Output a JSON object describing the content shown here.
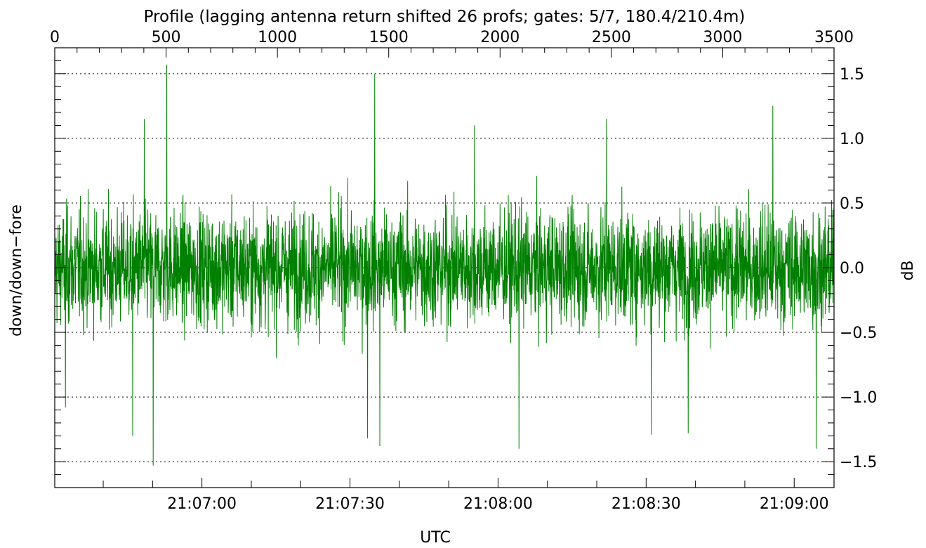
{
  "chart_data": {
    "type": "line",
    "title": "Profile (lagging antenna return shifted 26 profs; gates: 5/7, 180.4/210.4m)",
    "xlabel": "UTC",
    "ylabel_left": "down/down−fore",
    "ylabel_right": "dB",
    "xlim_profile": [
      0,
      3500
    ],
    "top_ticks": [
      "0",
      "500",
      "1000",
      "1500",
      "2000",
      "2500",
      "3000",
      "3500"
    ],
    "top_tick_values": [
      0,
      500,
      1000,
      1500,
      2000,
      2500,
      3000,
      3500
    ],
    "ylim": [
      -1.7,
      1.7
    ],
    "y_ticks": [
      "1.5",
      "1.0",
      "0.5",
      "0.0",
      "−0.5",
      "−1.0",
      "−1.5"
    ],
    "y_tick_values": [
      1.5,
      1.0,
      0.5,
      0.0,
      -0.5,
      -1.0,
      -1.5
    ],
    "x_time_labels": [
      "21:07:00",
      "21:07:30",
      "21:08:00",
      "21:08:30",
      "21:09:00"
    ],
    "x_time_profile_positions": [
      661,
      1326,
      1991,
      2656,
      3321
    ],
    "grid": "dotted at y ticks",
    "series": [
      {
        "color": "#008000",
        "n_points": 3500,
        "noise_std": 0.38,
        "peaks": [
          {
            "x": 503,
            "y": 1.57
          },
          {
            "x": 1437,
            "y": 1.5
          },
          {
            "x": 3225,
            "y": 1.25
          },
          {
            "x": 2478,
            "y": 1.15
          },
          {
            "x": 402,
            "y": 1.15
          },
          {
            "x": 1885,
            "y": 1.1
          }
        ],
        "troughs": [
          {
            "x": 442,
            "y": -1.53
          },
          {
            "x": 1460,
            "y": -1.38
          },
          {
            "x": 1405,
            "y": -1.32
          },
          {
            "x": 2085,
            "y": -1.4
          },
          {
            "x": 3420,
            "y": -1.4
          },
          {
            "x": 2845,
            "y": -1.28
          },
          {
            "x": 2680,
            "y": -1.29
          },
          {
            "x": 350,
            "y": -1.3
          },
          {
            "x": 48,
            "y": -1.08
          }
        ]
      }
    ]
  }
}
